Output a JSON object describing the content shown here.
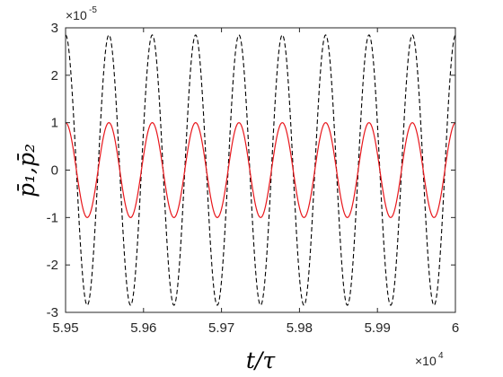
{
  "chart_data": {
    "type": "line",
    "title": "",
    "xlabel": "t/τ",
    "ylabel": "p̄₁,p̄₂",
    "x_exponent_label": {
      "base": "×10",
      "power": "4"
    },
    "y_exponent_label": {
      "base": "×10",
      "power": "-5"
    },
    "xlim": [
      59500,
      60000
    ],
    "ylim": [
      -3,
      3
    ],
    "y_scale_factor": "1e-5",
    "grid": false,
    "legend": "none",
    "x_ticks": [
      59500,
      59600,
      59700,
      59800,
      59900,
      60000
    ],
    "x_tick_labels": [
      "5.95",
      "5.96",
      "5.97",
      "5.98",
      "5.99",
      "6"
    ],
    "y_ticks": [
      -3,
      -2,
      -1,
      0,
      1,
      2,
      3
    ],
    "y_tick_labels": [
      "-3",
      "-2",
      "-1",
      "0",
      "1",
      "2",
      "3"
    ],
    "series": [
      {
        "style": "dashed",
        "color": "#000000",
        "amplitude": 2.85,
        "period": 55.6,
        "peak_x": [
          59500,
          59556,
          59611,
          59667,
          59722,
          59778,
          59833,
          59889,
          59945,
          60000
        ],
        "trough_x": [
          59528,
          59583,
          59639,
          59694,
          59750,
          59806,
          59861,
          59917,
          59972
        ]
      },
      {
        "style": "solid",
        "color": "#e8161b",
        "amplitude": 1.0,
        "period": 55.6,
        "peak_x": [
          59500,
          59556,
          59611,
          59667,
          59722,
          59778,
          59833,
          59889,
          59945,
          60000
        ],
        "trough_x": [
          59528,
          59583,
          59639,
          59694,
          59750,
          59806,
          59861,
          59917,
          59972
        ]
      }
    ]
  }
}
